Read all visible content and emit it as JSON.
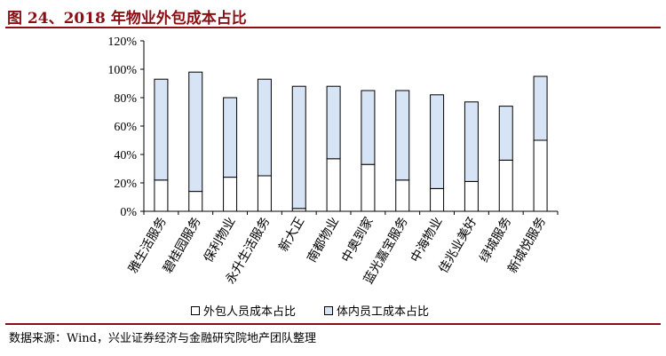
{
  "figure": {
    "title": "图 24、2018 年物业外包成本占比",
    "source": "数据来源：Wind，兴业证券经济与金融研究院地产团队整理"
  },
  "colors": {
    "title": "#8a0f14",
    "outsourced": "#ffffff",
    "in_house": "#d6e4f6",
    "stroke": "#000000"
  },
  "chart_data": {
    "type": "bar",
    "stacked": true,
    "categories": [
      "雅生活服务",
      "碧桂园服务",
      "保利物业",
      "永升生活服务",
      "新大正",
      "南都物业",
      "中奥到家",
      "蓝光嘉宝服务",
      "中海物业",
      "佳兆业美好",
      "绿城服务",
      "新城悦服务"
    ],
    "series": [
      {
        "name": "外包人员成本占比",
        "values": [
          22,
          14,
          24,
          25,
          2,
          37,
          33,
          22,
          16,
          21,
          36,
          50
        ]
      },
      {
        "name": "体内员工成本占比",
        "values": [
          71,
          84,
          56,
          68,
          86,
          51,
          52,
          63,
          66,
          56,
          38,
          45
        ]
      }
    ],
    "ylim": [
      0,
      120
    ],
    "yticks": [
      "0%",
      "20%",
      "40%",
      "60%",
      "80%",
      "100%",
      "120%"
    ],
    "ytick_values": [
      0,
      20,
      40,
      60,
      80,
      100,
      120
    ],
    "grid": false,
    "legend": "bottom"
  }
}
